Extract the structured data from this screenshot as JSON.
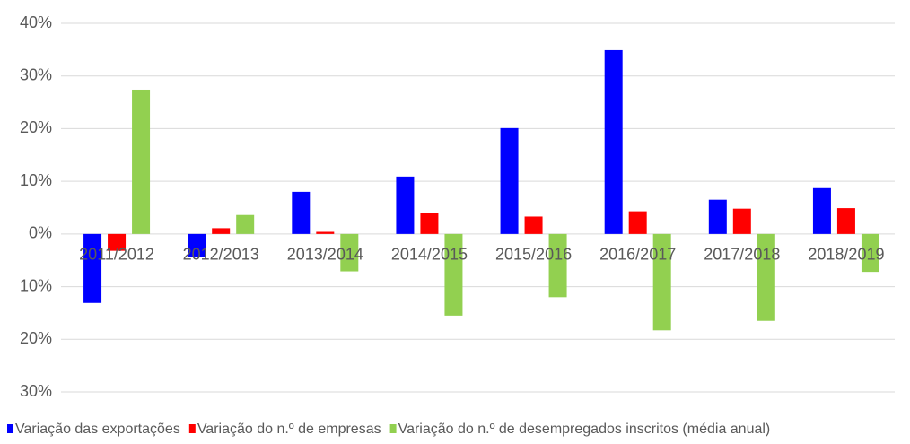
{
  "chart_data": {
    "type": "bar",
    "categories": [
      "2011/2012",
      "2012/2013",
      "2013/2014",
      "2014/2015",
      "2015/2016",
      "2016/2017",
      "2017/2018",
      "2018/2019"
    ],
    "series": [
      {
        "name": "Variação das exportações",
        "color": "#0000ff",
        "values": [
          -13.1,
          -4.4,
          8.0,
          10.9,
          20.1,
          34.9,
          6.5,
          8.7
        ]
      },
      {
        "name": "Variação do n.º de empresas",
        "color": "#ff0000",
        "values": [
          -3.2,
          1.1,
          0.4,
          3.9,
          3.3,
          4.3,
          4.8,
          4.9
        ]
      },
      {
        "name": "Variação do n.º de desempregados inscritos (média anual)",
        "color": "#92d050",
        "values": [
          27.4,
          3.6,
          -7.1,
          -15.5,
          -12.0,
          -18.3,
          -16.5,
          -7.2
        ]
      }
    ],
    "ylim": [
      -30,
      40
    ],
    "yticks": [
      {
        "value": -30,
        "label": "30%"
      },
      {
        "value": -20,
        "label": "20%"
      },
      {
        "value": -10,
        "label": "10%"
      },
      {
        "value": 0,
        "label": "0%"
      },
      {
        "value": 10,
        "label": "10%"
      },
      {
        "value": 20,
        "label": "20%"
      },
      {
        "value": 30,
        "label": "30%"
      },
      {
        "value": 40,
        "label": "40%"
      }
    ],
    "grid": true,
    "legend": "bottom"
  }
}
